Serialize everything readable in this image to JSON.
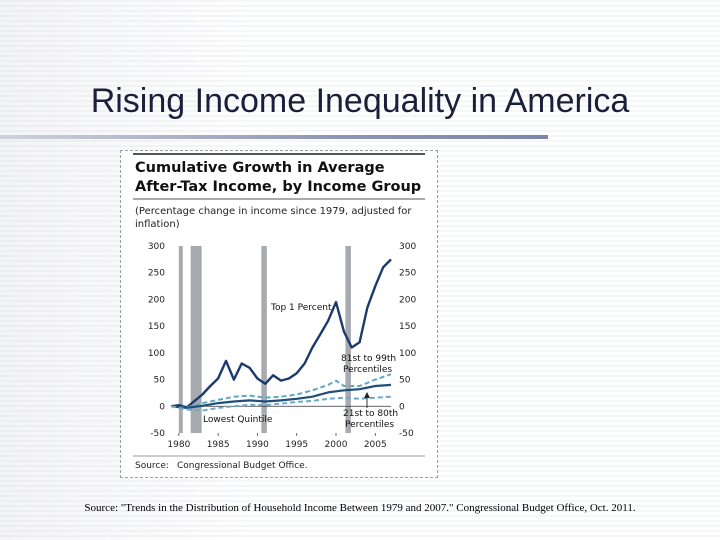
{
  "slide": {
    "title": "Rising Income Inequality in America",
    "source": "Source: \"Trends in the Distribution of Household Income Between 1979 and 2007.\" Congressional Budget Office, Oct. 2011."
  },
  "colors": {
    "title": "#1a1f3a",
    "top1": "#1d3a6e",
    "p81_99": "#5fa7c9",
    "p21_80": "#1f4e79",
    "lowest": "#6fa8c8",
    "recession": "#a7aaaf"
  },
  "chart_data": {
    "type": "line",
    "title": "Cumulative Growth in Average After-Tax Income, by Income Group",
    "subtitle": "(Percentage change in income since 1979, adjusted for inflation)",
    "source": "Source:",
    "source_value": "Congressional Budget Office.",
    "xlabel": "",
    "ylabel": "",
    "xlim": [
      1979,
      2007
    ],
    "ylim": [
      -50,
      300
    ],
    "y_ticks": [
      -50,
      0,
      50,
      100,
      150,
      200,
      250,
      300
    ],
    "x_ticks": [
      1980,
      1985,
      1990,
      1995,
      2000,
      2005
    ],
    "recessions": [
      [
        1980,
        1980.5
      ],
      [
        1981.5,
        1982.9
      ],
      [
        1990.5,
        1991.2
      ],
      [
        2001.2,
        2001.9
      ]
    ],
    "grid": false,
    "legend": "inline labels",
    "series": [
      {
        "name": "Top 1 Percent",
        "style": "solid",
        "x": [
          1979,
          1980,
          1981,
          1982,
          1983,
          1984,
          1985,
          1986,
          1987,
          1988,
          1989,
          1990,
          1991,
          1992,
          1993,
          1994,
          1995,
          1996,
          1997,
          1998,
          1999,
          2000,
          2001,
          2002,
          2003,
          2004,
          2005,
          2006,
          2007
        ],
        "values": [
          0,
          2,
          -2,
          10,
          22,
          38,
          52,
          85,
          50,
          80,
          72,
          52,
          42,
          58,
          48,
          52,
          62,
          80,
          110,
          135,
          160,
          195,
          140,
          110,
          120,
          185,
          225,
          260,
          275
        ]
      },
      {
        "name": "81st to 99th Percentiles",
        "style": "dashed",
        "x": [
          1979,
          1981,
          1983,
          1985,
          1987,
          1989,
          1991,
          1993,
          1995,
          1997,
          1999,
          2000,
          2001,
          2003,
          2005,
          2007
        ],
        "values": [
          0,
          -2,
          6,
          12,
          18,
          20,
          16,
          18,
          22,
          30,
          40,
          48,
          38,
          38,
          50,
          60
        ]
      },
      {
        "name": "21st to 80th Percentiles",
        "style": "solid",
        "x": [
          1979,
          1981,
          1983,
          1985,
          1987,
          1989,
          1991,
          1993,
          1995,
          1997,
          1999,
          2001,
          2003,
          2005,
          2007
        ],
        "values": [
          0,
          -3,
          1,
          6,
          9,
          11,
          9,
          11,
          14,
          18,
          26,
          30,
          32,
          38,
          40
        ]
      },
      {
        "name": "Lowest Quintile",
        "style": "dashed",
        "x": [
          1979,
          1981,
          1983,
          1985,
          1987,
          1989,
          1991,
          1993,
          1995,
          1997,
          1999,
          2001,
          2003,
          2005,
          2007
        ],
        "values": [
          0,
          -6,
          -8,
          -3,
          0,
          3,
          2,
          5,
          8,
          10,
          14,
          16,
          14,
          16,
          18
        ]
      }
    ],
    "labels": {
      "top1": "Top 1 Percent",
      "p81_a": "81st to 99th",
      "p81_b": "Percentiles",
      "p21_a": "21st to 80th",
      "p21_b": "Percentiles",
      "lowest": "Lowest Quintile"
    }
  }
}
